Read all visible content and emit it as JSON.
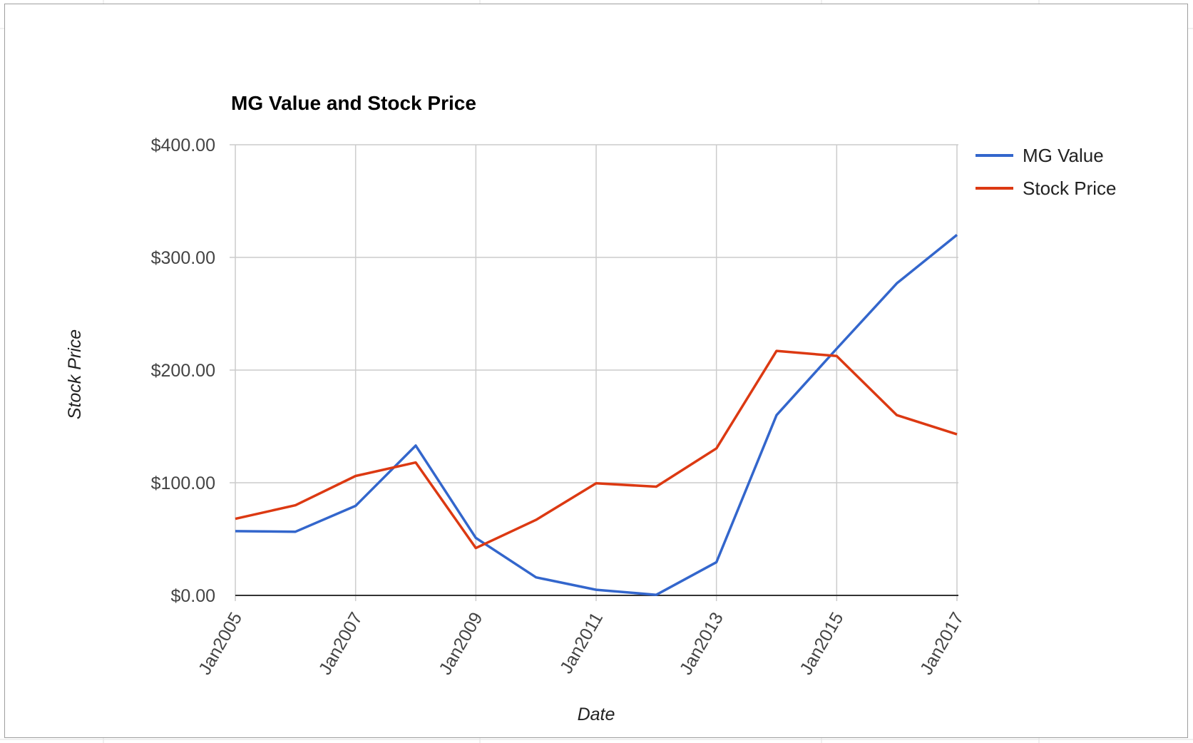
{
  "chart_data": {
    "type": "line",
    "title": "MG Value and Stock Price",
    "xlabel": "Date",
    "ylabel": "Stock Price",
    "x": [
      "Jan2005",
      "Jan2006",
      "Jan2007",
      "Jan2008",
      "Jan2009",
      "Jan2010",
      "Jan2011",
      "Jan2012",
      "Jan2013",
      "Jan2014",
      "Jan2015",
      "Jan2016",
      "Jan2017"
    ],
    "x_tick_labels": [
      "Jan2005",
      "Jan2007",
      "Jan2009",
      "Jan2011",
      "Jan2013",
      "Jan2015",
      "Jan2017"
    ],
    "ylim": [
      0,
      400
    ],
    "y_ticks": [
      0,
      100,
      200,
      300,
      400
    ],
    "y_tick_labels": [
      "$0.00",
      "$100.00",
      "$200.00",
      "$300.00",
      "$400.00"
    ],
    "grid": true,
    "legend_position": "right",
    "series": [
      {
        "name": "MG Value",
        "color": "#3366cc",
        "values": [
          57,
          56.5,
          79.5,
          133,
          51,
          16,
          5,
          0.5,
          29.5,
          160,
          219,
          277,
          320
        ]
      },
      {
        "name": "Stock Price",
        "color": "#dc3912",
        "values": [
          68,
          80,
          106,
          118,
          42,
          67,
          99.5,
          96.5,
          130.5,
          217,
          212.5,
          160,
          143
        ]
      }
    ]
  }
}
